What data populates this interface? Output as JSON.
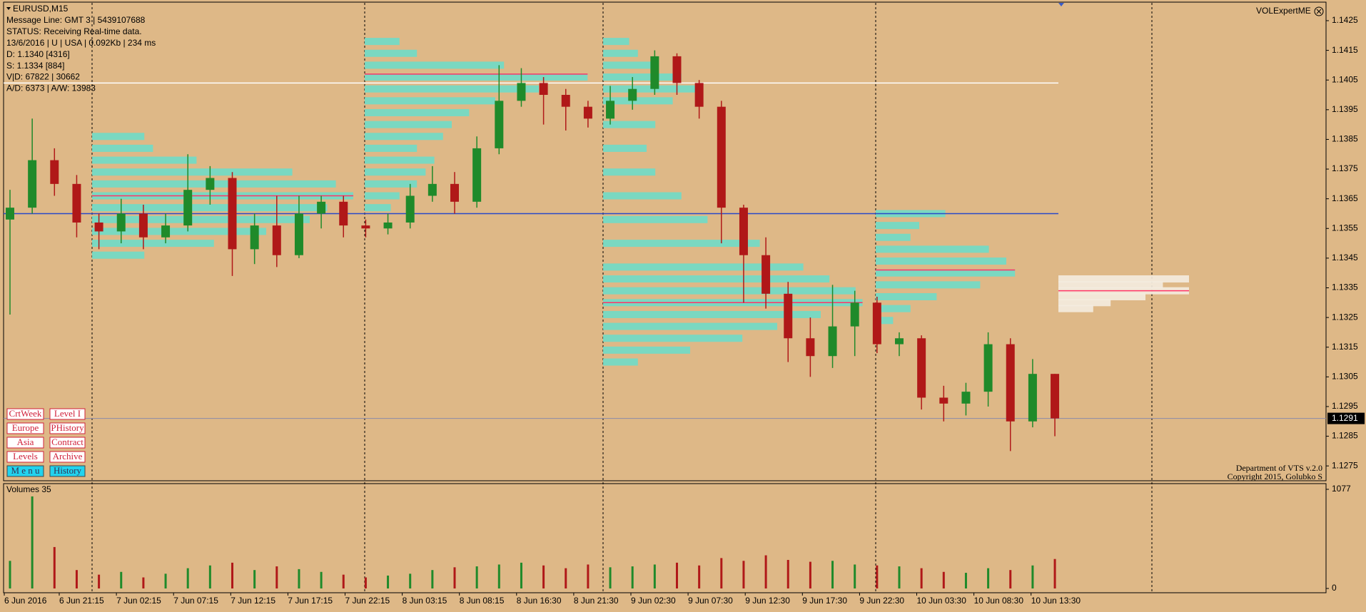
{
  "chart_data": [
    {
      "type": "candlestick",
      "symbol": "EURUSD,M15",
      "open": [
        1.1358,
        1.1362,
        1.1378,
        1.137,
        1.1357,
        1.1354,
        1.136,
        1.1352,
        1.1356,
        1.1368,
        1.1372,
        1.1348,
        1.1356,
        1.1346,
        1.136,
        1.1364,
        1.1356,
        1.1355,
        1.1357,
        1.1366,
        1.137,
        1.1364,
        1.1382,
        1.1398,
        1.1404,
        1.14,
        1.1396,
        1.1392,
        1.1398,
        1.1402,
        1.1413,
        1.1404,
        1.1396,
        1.1362,
        1.1346,
        1.1333,
        1.1318,
        1.1312,
        1.1322,
        1.133,
        1.1316,
        1.1318,
        1.1298,
        1.1296,
        1.13,
        1.1316,
        1.129,
        1.1306
      ],
      "high": [
        1.1368,
        1.1392,
        1.1382,
        1.1373,
        1.136,
        1.1365,
        1.1363,
        1.136,
        1.138,
        1.1376,
        1.1374,
        1.136,
        1.1366,
        1.1366,
        1.1366,
        1.1366,
        1.1358,
        1.136,
        1.137,
        1.1376,
        1.1374,
        1.1386,
        1.141,
        1.1409,
        1.1406,
        1.1402,
        1.1398,
        1.1403,
        1.1406,
        1.1415,
        1.1414,
        1.1405,
        1.1398,
        1.1363,
        1.1352,
        1.1337,
        1.1325,
        1.1336,
        1.1334,
        1.1332,
        1.132,
        1.1319,
        1.1302,
        1.1303,
        1.132,
        1.1318,
        1.1311,
        1.1306
      ],
      "low": [
        1.1326,
        1.136,
        1.1366,
        1.1352,
        1.1348,
        1.135,
        1.1348,
        1.135,
        1.1354,
        1.1363,
        1.1339,
        1.1343,
        1.1342,
        1.1345,
        1.1355,
        1.1352,
        1.1352,
        1.1353,
        1.1355,
        1.1364,
        1.136,
        1.1362,
        1.138,
        1.1396,
        1.139,
        1.1388,
        1.1389,
        1.139,
        1.1395,
        1.14,
        1.14,
        1.1392,
        1.135,
        1.133,
        1.1328,
        1.131,
        1.1305,
        1.1308,
        1.1312,
        1.1313,
        1.1312,
        1.1294,
        1.129,
        1.1292,
        1.1295,
        1.128,
        1.1288,
        1.1285
      ],
      "close": [
        1.1362,
        1.1378,
        1.137,
        1.1357,
        1.1354,
        1.136,
        1.1352,
        1.1356,
        1.1368,
        1.1372,
        1.1348,
        1.1356,
        1.1346,
        1.136,
        1.1364,
        1.1356,
        1.1355,
        1.1357,
        1.1366,
        1.137,
        1.1364,
        1.1382,
        1.1398,
        1.1404,
        1.14,
        1.1396,
        1.1392,
        1.1398,
        1.1402,
        1.1413,
        1.1404,
        1.1396,
        1.1362,
        1.1346,
        1.1333,
        1.1318,
        1.1312,
        1.1322,
        1.133,
        1.1316,
        1.1318,
        1.1298,
        1.1296,
        1.13,
        1.1316,
        1.129,
        1.1306,
        1.1291
      ],
      "up_color": "#1f8a2a",
      "down_color": "#b01818",
      "ylim": [
        1.127,
        1.1431
      ],
      "yticks": [
        1.1425,
        1.1415,
        1.1405,
        1.1395,
        1.1385,
        1.1375,
        1.1365,
        1.1355,
        1.1345,
        1.1335,
        1.1325,
        1.1315,
        1.1305,
        1.1295,
        1.1285,
        1.1275
      ],
      "current_price": 1.1291,
      "levels": [
        {
          "price": 1.1404,
          "color": "#ffffff"
        },
        {
          "price": 1.136,
          "color": "#2a48c8"
        }
      ],
      "profiles": [
        {
          "color": "#6fdcc8",
          "poc": 1.1366,
          "prices": [
            1.1386,
            1.1382,
            1.1378,
            1.1374,
            1.137,
            1.1366,
            1.1362,
            1.1358,
            1.1354,
            1.135,
            1.1346
          ],
          "volumes": [
            60,
            70,
            120,
            230,
            280,
            300,
            270,
            250,
            200,
            140,
            60
          ]
        },
        {
          "color": "#6fdcc8",
          "poc": 1.1407,
          "prices": [
            1.1418,
            1.1414,
            1.141,
            1.1406,
            1.1402,
            1.1398,
            1.1394,
            1.139,
            1.1386,
            1.1382,
            1.1378,
            1.1374,
            1.137,
            1.1366,
            1.1362
          ],
          "volumes": [
            40,
            60,
            160,
            256,
            200,
            150,
            120,
            100,
            90,
            60,
            80,
            70,
            60,
            40,
            30
          ]
        },
        {
          "color": "#6fdcc8",
          "poc": 1.133,
          "prices": [
            1.1418,
            1.1414,
            1.141,
            1.1406,
            1.1402,
            1.1398,
            1.139,
            1.1382,
            1.1374,
            1.1366,
            1.1358,
            1.135,
            1.1342,
            1.1338,
            1.1334,
            1.133,
            1.1326,
            1.1322,
            1.1318,
            1.1314,
            1.131
          ],
          "volumes": [
            30,
            40,
            60,
            90,
            110,
            80,
            60,
            50,
            60,
            90,
            120,
            180,
            230,
            260,
            290,
            298,
            250,
            200,
            160,
            100,
            40
          ]
        },
        {
          "color": "#6fdcc8",
          "poc": 1.1341,
          "prices": [
            1.136,
            1.1356,
            1.1352,
            1.1348,
            1.1344,
            1.134,
            1.1336,
            1.1332,
            1.1328,
            1.1324
          ],
          "volumes": [
            80,
            50,
            40,
            130,
            150,
            160,
            120,
            70,
            40,
            20
          ]
        },
        {
          "color": "#f4ece0",
          "poc": 1.1334,
          "prices": [
            1.1338,
            1.1336,
            1.1334,
            1.1332,
            1.133,
            1.1328
          ],
          "volumes": [
            150,
            120,
            150,
            100,
            60,
            40
          ]
        }
      ],
      "poc_color": "#ff3366",
      "x_labels": [
        "6 Jun 2016",
        "6 Jun 21:15",
        "7 Jun 02:15",
        "7 Jun 07:15",
        "7 Jun 12:15",
        "7 Jun 17:15",
        "7 Jun 22:15",
        "8 Jun 03:15",
        "8 Jun 08:15",
        "8 Jun 16:30",
        "8 Jun 21:30",
        "9 Jun 02:30",
        "9 Jun 07:30",
        "9 Jun 12:30",
        "9 Jun 17:30",
        "9 Jun 22:30",
        "10 Jun 03:30",
        "10 Jun 08:30",
        "10 Jun 13:30"
      ]
    },
    {
      "type": "bar",
      "title": "Volumes 35",
      "values": [
        300,
        1000,
        450,
        200,
        150,
        180,
        120,
        160,
        220,
        250,
        280,
        200,
        240,
        210,
        180,
        150,
        120,
        140,
        160,
        200,
        230,
        240,
        260,
        280,
        250,
        220,
        260,
        230,
        240,
        260,
        280,
        250,
        330,
        300,
        360,
        310,
        290,
        300,
        260,
        250,
        240,
        220,
        180,
        170,
        220,
        200,
        250,
        320
      ],
      "ylim": [
        0,
        1077
      ],
      "yticks": [
        0,
        1077
      ]
    }
  ],
  "info": [
    "Message Line: GMT 3 | 5439107688",
    "STATUS:  Receiving Real-time data.",
    "13/6/2016 | U | USA | 0.092Kb | 234 ms",
    "D: 1.1340  [4316]",
    "S: 1.1334  [884]",
    "V|D: 67822 | 30662",
    "A/D: 6373 | A/W: 13983"
  ],
  "buttons": [
    [
      "CrtWeek",
      "Level I"
    ],
    [
      "Europe",
      "PHistory"
    ],
    [
      "Asia",
      "Contract"
    ],
    [
      "Levels",
      "Archive"
    ],
    [
      "M e n u",
      "History"
    ]
  ],
  "indicator": "VOLExpertME",
  "footer": [
    "Department of VTS  v.2.0",
    "Copyright 2015, Golubko S"
  ]
}
